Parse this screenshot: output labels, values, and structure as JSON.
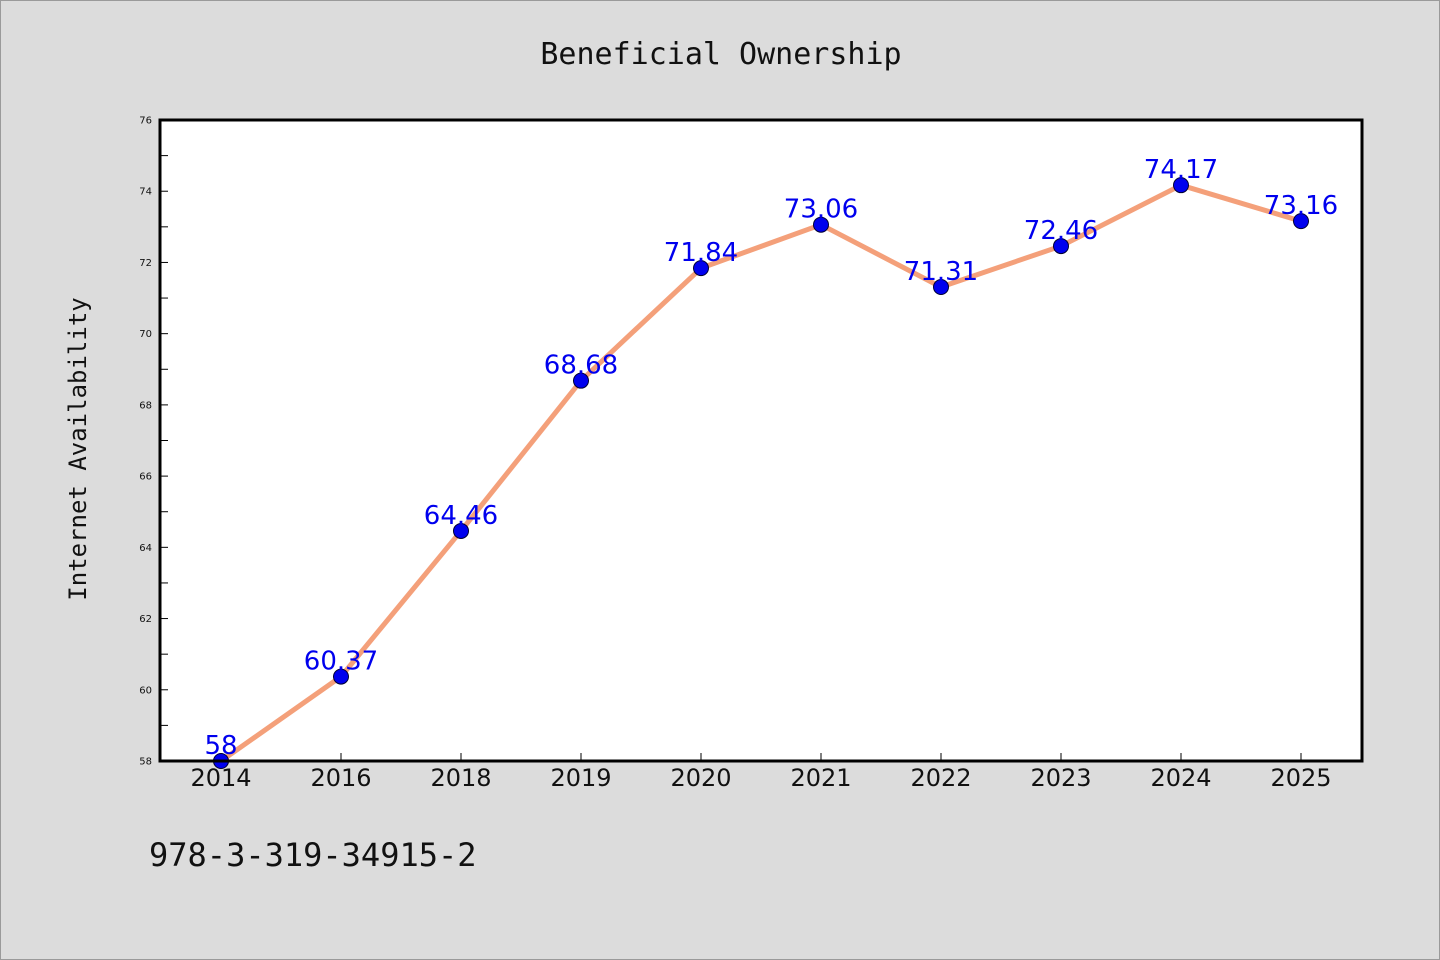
{
  "chart_data": {
    "type": "line",
    "title": "Beneficial Ownership",
    "xlabel": "",
    "ylabel": "Internet Availability",
    "categories": [
      "2014",
      "2016",
      "2018",
      "2019",
      "2020",
      "2021",
      "2022",
      "2023",
      "2024",
      "2025"
    ],
    "series": [
      {
        "values": [
          58,
          60.37,
          64.46,
          68.68,
          71.84,
          73.06,
          71.31,
          72.46,
          74.17,
          73.16
        ]
      }
    ],
    "data_labels": [
      "58",
      "60.37",
      "64.46",
      "68.68",
      "71.84",
      "73.06",
      "71.31",
      "72.46",
      "74.17",
      "73.16"
    ],
    "ylim": [
      58,
      76
    ],
    "yticks": [
      58,
      60,
      62,
      64,
      66,
      68,
      70,
      72,
      74,
      76
    ],
    "grid": false,
    "legend": "none",
    "colors": {
      "line": "#f4a07a",
      "marker": "#0000ee",
      "label": "#0000ee",
      "background": "#dcdcdc",
      "plot_background": "#ffffff"
    }
  },
  "footer": {
    "isbn": "978-3-319-34915-2"
  }
}
